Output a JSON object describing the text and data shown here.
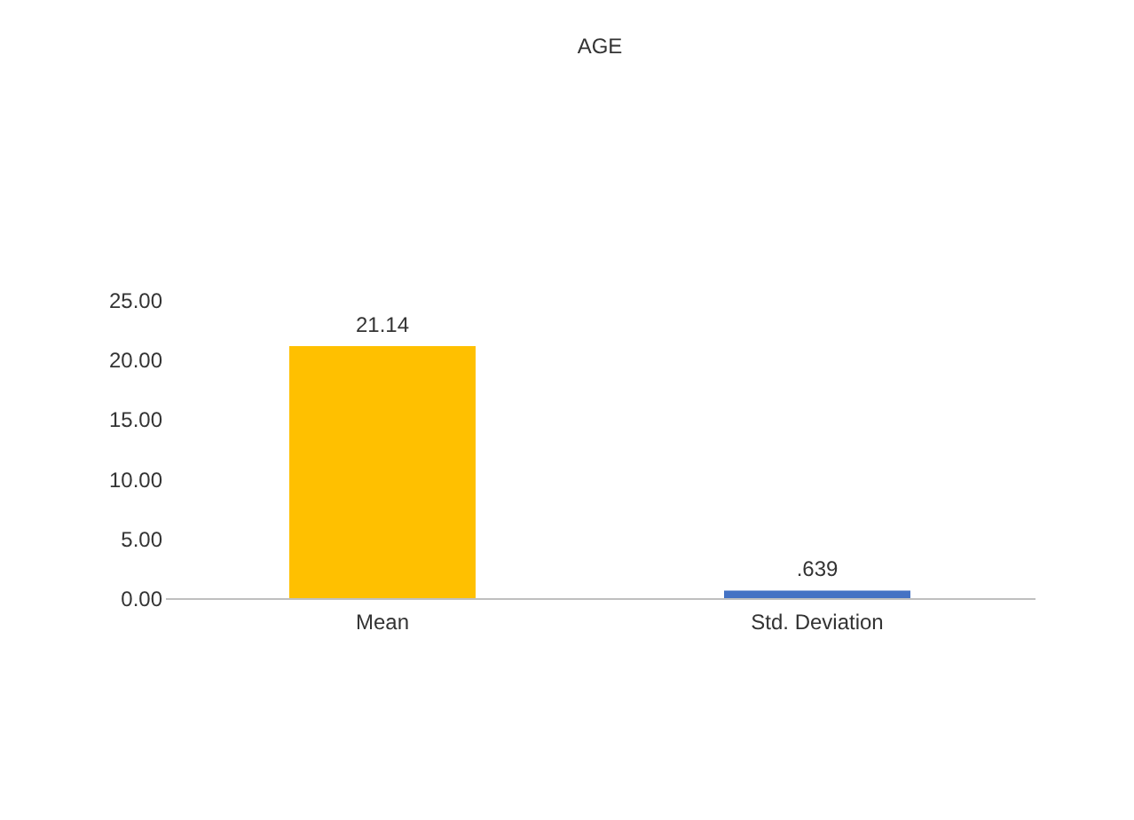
{
  "chart_data": {
    "type": "bar",
    "title": "AGE",
    "categories": [
      "Mean",
      "Std. Deviation"
    ],
    "values": [
      21.14,
      0.639
    ],
    "colors": [
      "#ffc000",
      "#4472c4"
    ],
    "value_labels": [
      "21.14",
      ".639"
    ],
    "ylim": [
      0,
      25
    ],
    "yticks": [
      {
        "value": 0,
        "label": "0.00"
      },
      {
        "value": 5,
        "label": "5.00"
      },
      {
        "value": 10,
        "label": "10.00"
      },
      {
        "value": 15,
        "label": "15.00"
      },
      {
        "value": 20,
        "label": "20.00"
      },
      {
        "value": 25,
        "label": "25.00"
      }
    ],
    "grid": false
  }
}
